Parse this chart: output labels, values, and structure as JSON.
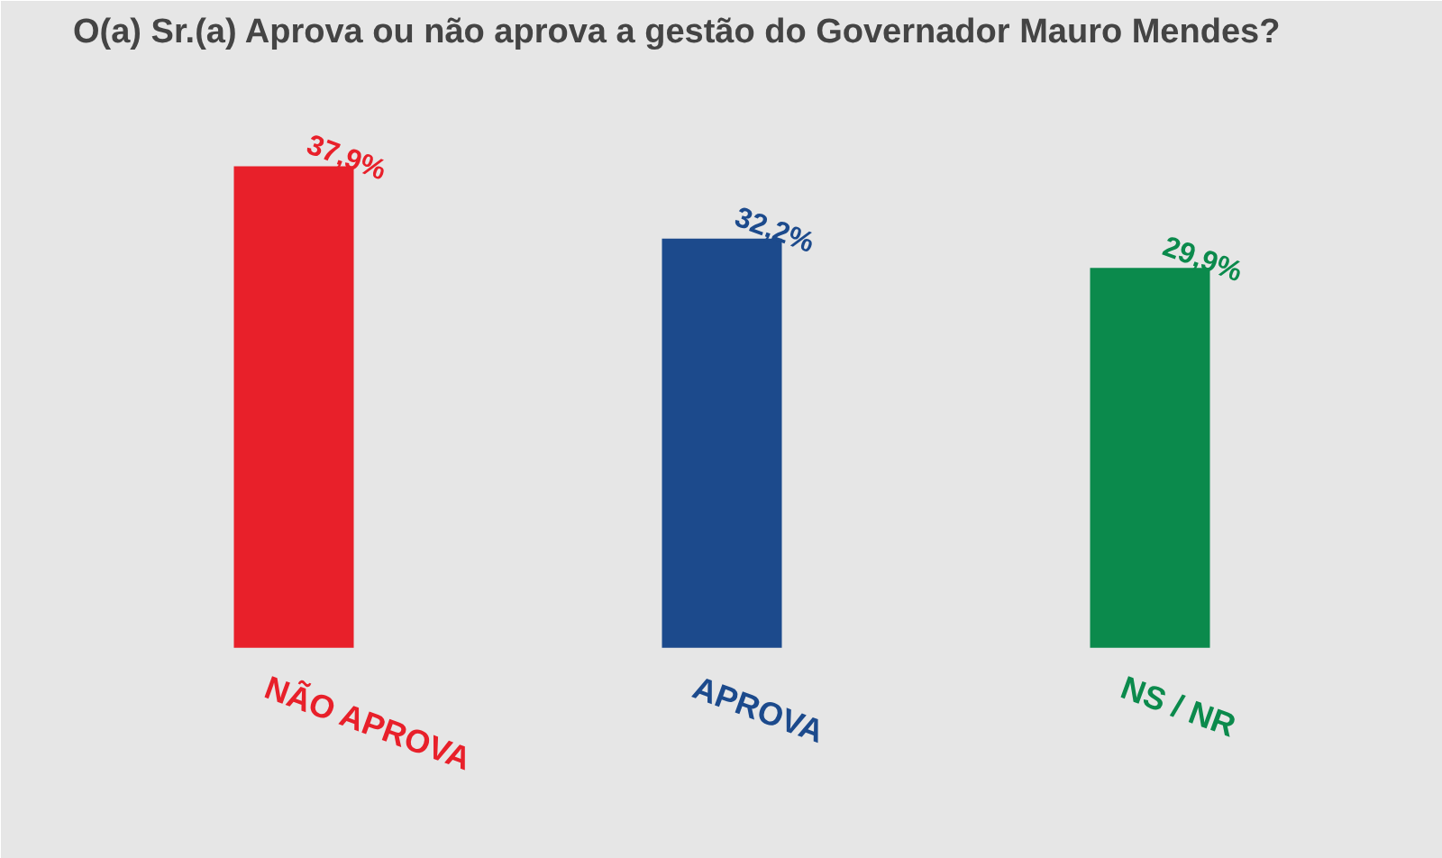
{
  "chart_data": {
    "type": "bar",
    "title": "O(a) Sr.(a) Aprova ou não aprova a gestão do Governador Mauro Mendes?",
    "categories": [
      "NÃO APROVA",
      "APROVA",
      "NS / NR"
    ],
    "values": [
      37.9,
      32.2,
      29.9
    ],
    "value_labels": [
      "37,9%",
      "32,2%",
      "29,9%"
    ],
    "colors": [
      "#e8202a",
      "#1c4a8c",
      "#0b8a4c"
    ]
  }
}
